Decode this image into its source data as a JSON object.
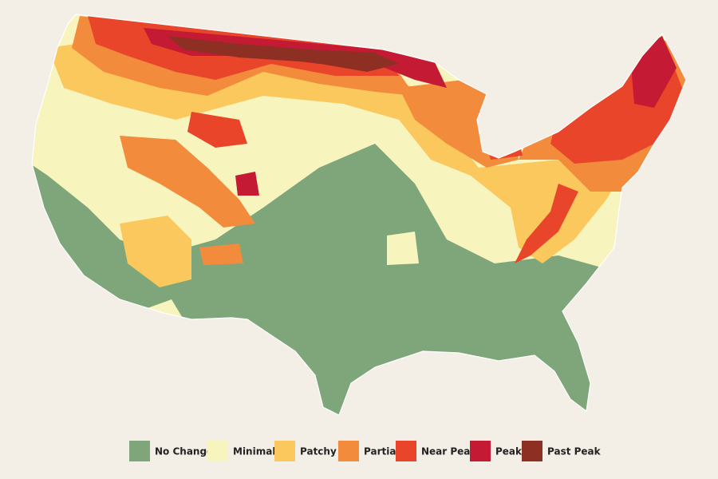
{
  "legend": {
    "items": [
      {
        "label": "No Change",
        "color": "#7fa67a"
      },
      {
        "label": "Minimal",
        "color": "#f8f4bd"
      },
      {
        "label": "Patchy",
        "color": "#fbc85e"
      },
      {
        "label": "Partial",
        "color": "#f28b3c"
      },
      {
        "label": "Near Peak",
        "color": "#e8452a"
      },
      {
        "label": "Peak",
        "color": "#c41a34"
      },
      {
        "label": "Past Peak",
        "color": "#8e2f23"
      }
    ]
  }
}
